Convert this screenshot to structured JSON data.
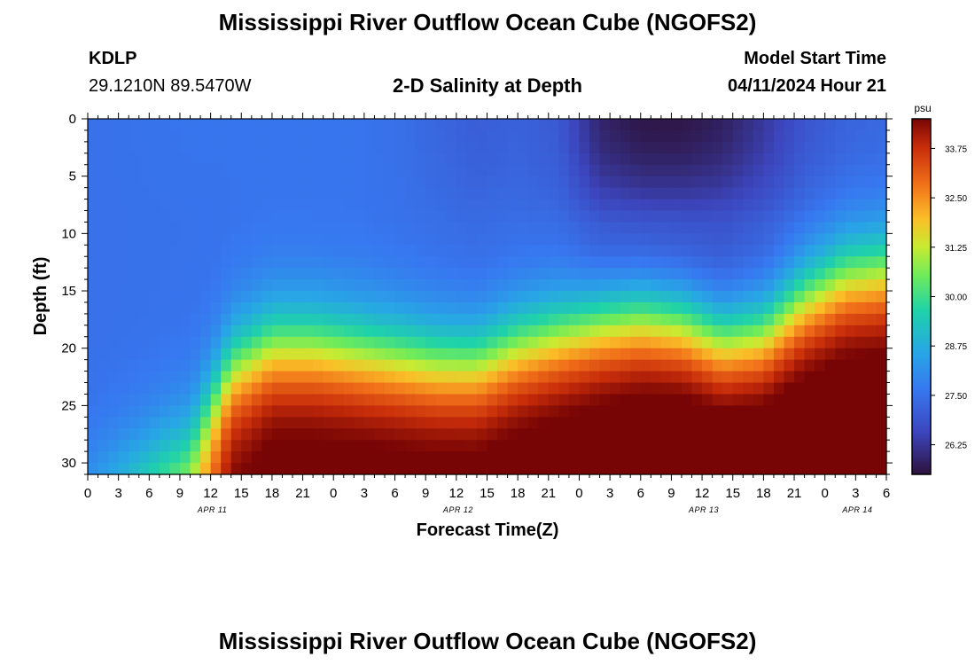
{
  "header": {
    "title": "Mississippi River Outflow Ocean Cube (NGOFS2)",
    "station_id": "KDLP",
    "station_coords": "29.1210N  89.5470W",
    "subtitle": "2-D Salinity at Depth",
    "model_start_label": "Model Start Time",
    "model_start_value": "04/11/2024 Hour 21"
  },
  "footer": {
    "title": "Mississippi River Outflow Ocean Cube (NGOFS2)"
  },
  "chart_data": {
    "type": "heatmap",
    "title": "2-D Salinity at Depth",
    "xlabel": "Forecast Time(Z)",
    "ylabel": "Depth (ft)",
    "x_tick_labels": [
      "0",
      "3",
      "6",
      "9",
      "12",
      "15",
      "18",
      "21",
      "0",
      "3",
      "6",
      "9",
      "12",
      "15",
      "18",
      "21",
      "0",
      "3",
      "6",
      "9",
      "12",
      "15",
      "18",
      "21",
      "0",
      "3",
      "6"
    ],
    "x_hours_range": [
      0,
      78
    ],
    "date_labels": [
      {
        "label": "APR 11",
        "hour": 12
      },
      {
        "label": "APR 12",
        "hour": 36
      },
      {
        "label": "APR 13",
        "hour": 60
      },
      {
        "label": "APR 14",
        "hour": 75
      }
    ],
    "y_ticks": [
      0,
      5,
      10,
      15,
      20,
      25,
      30
    ],
    "y_range": [
      0,
      31
    ],
    "y_inverted": true,
    "colorbar": {
      "unit": "psu",
      "ticks": [
        "33.75",
        "32.50",
        "31.25",
        "30.00",
        "28.75",
        "27.50",
        "26.25"
      ],
      "range": [
        25.5,
        34.5
      ]
    },
    "profile_hours": [
      0,
      10,
      14,
      18,
      22,
      26,
      30,
      34,
      38,
      42,
      46,
      50,
      54,
      58,
      62,
      66,
      70,
      74,
      78
    ],
    "surface_salinity": [
      27.5,
      27.6,
      27.6,
      27.6,
      27.6,
      27.6,
      27.5,
      27.3,
      27.1,
      27.2,
      27.0,
      25.9,
      25.6,
      25.6,
      25.8,
      26.3,
      26.9,
      27.2,
      27.3
    ],
    "cline_depth_ft": [
      31,
      28.5,
      22,
      20,
      20,
      20.5,
      21,
      21.5,
      21.5,
      20,
      19,
      18,
      17.5,
      18,
      19.5,
      19,
      16,
      14,
      13.5
    ],
    "deep_salinity": [
      27.8,
      31.0,
      33.6,
      34.0,
      34.0,
      34.0,
      34.0,
      34.0,
      34.0,
      34.1,
      34.2,
      34.3,
      34.4,
      34.5,
      34.5,
      34.5,
      34.4,
      34.4,
      34.4
    ]
  }
}
